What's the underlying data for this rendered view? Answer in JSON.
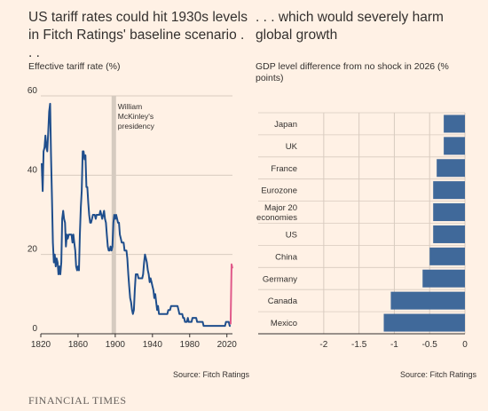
{
  "headline_left": "US tariff rates could hit 1930s levels in Fitch Ratings' baseline scenario . . .",
  "headline_right": ". . . which would severely harm global growth",
  "source_left": "Source: Fitch Ratings",
  "source_right": "Source: Fitch Ratings",
  "brand": "FINANCIAL TIMES",
  "colors": {
    "line": "#1f4e8c",
    "projection": "#e05a8a",
    "bar": "#40699a",
    "annotation_band": "#d6cbc0",
    "grid": "#d8cbbf"
  },
  "chart_data": [
    {
      "type": "line",
      "title": "",
      "ylabel": "Effective tariff rate (%)",
      "xlabel": "",
      "xlim": [
        1820,
        2026
      ],
      "ylim": [
        0,
        60
      ],
      "xticks": [
        1820,
        1860,
        1900,
        1940,
        1980,
        2020
      ],
      "yticks": [
        0,
        20,
        40,
        60
      ],
      "annotation": {
        "text": [
          "William",
          "McKinley's",
          "presidency"
        ],
        "x": 1898
      },
      "series": [
        {
          "values": [
            [
              1821,
              43
            ],
            [
              1822,
              36
            ],
            [
              1823,
              46
            ],
            [
              1824,
              47
            ],
            [
              1825,
              50
            ],
            [
              1826,
              47
            ],
            [
              1827,
              46
            ],
            [
              1828,
              51
            ],
            [
              1829,
              56
            ],
            [
              1830,
              58
            ],
            [
              1831,
              45
            ],
            [
              1832,
              34
            ],
            [
              1833,
              23
            ],
            [
              1834,
              18
            ],
            [
              1835,
              20
            ],
            [
              1836,
              17
            ],
            [
              1837,
              19
            ],
            [
              1838,
              18
            ],
            [
              1839,
              15
            ],
            [
              1840,
              17
            ],
            [
              1841,
              15
            ],
            [
              1842,
              18
            ],
            [
              1843,
              29
            ],
            [
              1844,
              31
            ],
            [
              1845,
              29
            ],
            [
              1846,
              28
            ],
            [
              1847,
              22
            ],
            [
              1848,
              25
            ],
            [
              1849,
              24
            ],
            [
              1850,
              25
            ],
            [
              1851,
              25
            ],
            [
              1852,
              25
            ],
            [
              1853,
              25
            ],
            [
              1854,
              23
            ],
            [
              1855,
              25
            ],
            [
              1856,
              23
            ],
            [
              1857,
              21
            ],
            [
              1858,
              17
            ],
            [
              1859,
              16
            ],
            [
              1860,
              17
            ],
            [
              1861,
              16
            ],
            [
              1862,
              25
            ],
            [
              1863,
              32
            ],
            [
              1864,
              36
            ],
            [
              1865,
              46
            ],
            [
              1866,
              46
            ],
            [
              1867,
              44
            ],
            [
              1868,
              45
            ],
            [
              1869,
              37
            ],
            [
              1870,
              37
            ],
            [
              1871,
              33
            ],
            [
              1872,
              30
            ],
            [
              1873,
              28
            ],
            [
              1874,
              28
            ],
            [
              1875,
              29
            ],
            [
              1876,
              30
            ],
            [
              1877,
              30
            ],
            [
              1878,
              30
            ],
            [
              1879,
              29
            ],
            [
              1880,
              30
            ],
            [
              1881,
              30
            ],
            [
              1882,
              30
            ],
            [
              1883,
              30
            ],
            [
              1884,
              31
            ],
            [
              1885,
              30
            ],
            [
              1886,
              29
            ],
            [
              1887,
              30
            ],
            [
              1888,
              31
            ],
            [
              1889,
              29
            ],
            [
              1890,
              28
            ],
            [
              1891,
              25
            ],
            [
              1892,
              22
            ],
            [
              1893,
              21
            ],
            [
              1894,
              21
            ],
            [
              1895,
              22
            ],
            [
              1896,
              21
            ],
            [
              1897,
              22
            ],
            [
              1898,
              28
            ],
            [
              1899,
              30
            ],
            [
              1900,
              29
            ],
            [
              1901,
              30
            ],
            [
              1902,
              29
            ],
            [
              1903,
              28
            ],
            [
              1904,
              28
            ],
            [
              1905,
              25
            ],
            [
              1906,
              24
            ],
            [
              1907,
              23
            ],
            [
              1908,
              23
            ],
            [
              1909,
              23
            ],
            [
              1910,
              21
            ],
            [
              1911,
              21
            ],
            [
              1912,
              21
            ],
            [
              1913,
              19
            ],
            [
              1914,
              15
            ],
            [
              1915,
              12
            ],
            [
              1916,
              9
            ],
            [
              1917,
              8
            ],
            [
              1918,
              6
            ],
            [
              1919,
              5
            ],
            [
              1920,
              6
            ],
            [
              1921,
              11
            ],
            [
              1922,
              15
            ],
            [
              1923,
              15
            ],
            [
              1924,
              15
            ],
            [
              1925,
              14
            ],
            [
              1926,
              14
            ],
            [
              1927,
              14
            ],
            [
              1928,
              14
            ],
            [
              1929,
              14
            ],
            [
              1930,
              15
            ],
            [
              1931,
              18
            ],
            [
              1932,
              20
            ],
            [
              1933,
              19
            ],
            [
              1934,
              18
            ],
            [
              1935,
              16
            ],
            [
              1936,
              15
            ],
            [
              1937,
              13
            ],
            [
              1938,
              14
            ],
            [
              1939,
              13
            ],
            [
              1940,
              12
            ],
            [
              1941,
              11
            ],
            [
              1942,
              9
            ],
            [
              1943,
              10
            ],
            [
              1944,
              8
            ],
            [
              1945,
              6
            ],
            [
              1946,
              7
            ],
            [
              1947,
              5
            ],
            [
              1948,
              5
            ],
            [
              1949,
              5
            ],
            [
              1950,
              5
            ],
            [
              1951,
              5
            ],
            [
              1952,
              5
            ],
            [
              1953,
              5
            ],
            [
              1954,
              5
            ],
            [
              1955,
              5
            ],
            [
              1956,
              5
            ],
            [
              1957,
              6
            ],
            [
              1958,
              6
            ],
            [
              1959,
              6
            ],
            [
              1960,
              7
            ],
            [
              1961,
              7
            ],
            [
              1962,
              7
            ],
            [
              1963,
              7
            ],
            [
              1964,
              7
            ],
            [
              1965,
              7
            ],
            [
              1966,
              7
            ],
            [
              1967,
              7
            ],
            [
              1968,
              6
            ],
            [
              1969,
              5
            ],
            [
              1970,
              5
            ],
            [
              1971,
              5
            ],
            [
              1972,
              5
            ],
            [
              1973,
              4
            ],
            [
              1974,
              4
            ],
            [
              1975,
              3
            ],
            [
              1976,
              3
            ],
            [
              1977,
              3
            ],
            [
              1978,
              4
            ],
            [
              1979,
              3
            ],
            [
              1980,
              3
            ],
            [
              1981,
              3
            ],
            [
              1982,
              3
            ],
            [
              1983,
              4
            ],
            [
              1984,
              4
            ],
            [
              1985,
              4
            ],
            [
              1986,
              4
            ],
            [
              1987,
              4
            ],
            [
              1988,
              3
            ],
            [
              1989,
              3
            ],
            [
              1990,
              3
            ],
            [
              1991,
              3
            ],
            [
              1992,
              3
            ],
            [
              1993,
              3
            ],
            [
              1994,
              3
            ],
            [
              1995,
              2
            ],
            [
              1996,
              2
            ],
            [
              1997,
              2
            ],
            [
              1998,
              2
            ],
            [
              1999,
              2
            ],
            [
              2000,
              2
            ],
            [
              2001,
              2
            ],
            [
              2002,
              2
            ],
            [
              2003,
              2
            ],
            [
              2004,
              2
            ],
            [
              2005,
              2
            ],
            [
              2006,
              2
            ],
            [
              2007,
              2
            ],
            [
              2008,
              2
            ],
            [
              2009,
              2
            ],
            [
              2010,
              2
            ],
            [
              2011,
              2
            ],
            [
              2012,
              2
            ],
            [
              2013,
              2
            ],
            [
              2014,
              2
            ],
            [
              2015,
              2
            ],
            [
              2016,
              2
            ],
            [
              2017,
              2
            ],
            [
              2018,
              2
            ],
            [
              2019,
              3
            ],
            [
              2020,
              3
            ],
            [
              2021,
              3
            ],
            [
              2022,
              3
            ],
            [
              2023,
              2
            ],
            [
              2024,
              2
            ]
          ]
        },
        {
          "values": [
            [
              2024,
              2.4
            ],
            [
              2025,
              17.5
            ],
            [
              2026,
              16.5
            ]
          ]
        }
      ]
    },
    {
      "type": "bar",
      "title": "",
      "ylabel": "GDP level difference from no shock in 2026 (% points)",
      "xlim": [
        -2.3,
        0
      ],
      "xticks": [
        -2,
        -1.5,
        -1,
        -0.5,
        0
      ],
      "xtick_labels": [
        "-2",
        "-1.5",
        "-1",
        "-0.5",
        "0"
      ],
      "categories": [
        [
          "Japan"
        ],
        [
          "UK"
        ],
        [
          "France"
        ],
        [
          "Eurozone"
        ],
        [
          "Major 20",
          "economies"
        ],
        [
          "US"
        ],
        [
          "China"
        ],
        [
          "Germany"
        ],
        [
          "Canada"
        ],
        [
          "Mexico"
        ]
      ],
      "values": [
        -0.3,
        -0.3,
        -0.4,
        -0.45,
        -0.45,
        -0.45,
        -0.5,
        -0.6,
        -1.05,
        -1.15
      ]
    }
  ]
}
